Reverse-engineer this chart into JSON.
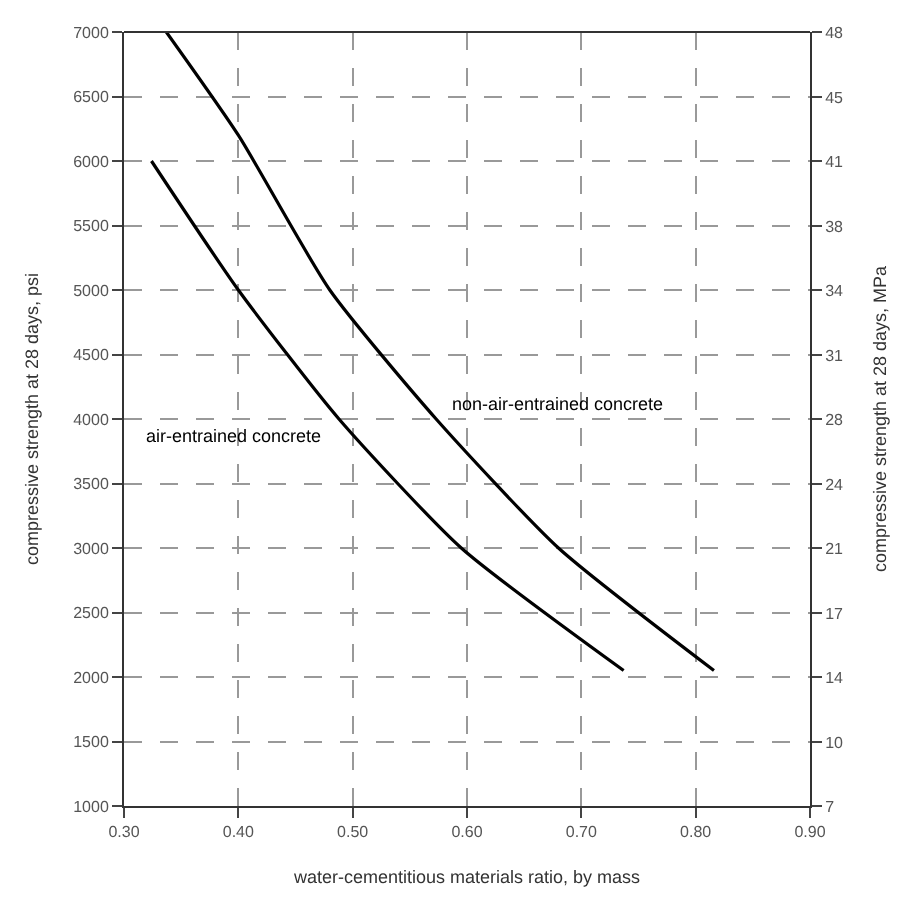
{
  "chart_data": {
    "type": "line",
    "xlabel": "water-cementitious materials ratio, by mass",
    "ylabel": "compressive strength at 28 days, psi",
    "y2label": "compressive strength at 28 days, MPa",
    "series": [
      {
        "name": "non-air-entrained concrete",
        "color": "#000000",
        "x": [
          0.337,
          0.4,
          0.48,
          0.573,
          0.68,
          0.816
        ],
        "values": [
          7000,
          6200,
          5000,
          4000,
          3000,
          2050
        ]
      },
      {
        "name": "air-entrained concrete",
        "color": "#000000",
        "x": [
          0.324,
          0.4,
          0.488,
          0.595,
          0.737
        ],
        "values": [
          6000,
          5000,
          4000,
          3000,
          2050
        ]
      }
    ],
    "xlim": [
      0.3,
      0.9
    ],
    "xticks": [
      {
        "value": 0.3,
        "label": "0.30"
      },
      {
        "value": 0.4,
        "label": "0.40"
      },
      {
        "value": 0.5,
        "label": "0.50"
      },
      {
        "value": 0.6,
        "label": "0.60"
      },
      {
        "value": 0.7,
        "label": "0.70"
      },
      {
        "value": 0.8,
        "label": "0.80"
      },
      {
        "value": 0.9,
        "label": "0.90"
      }
    ],
    "ylim": [
      1000,
      7000
    ],
    "yticks": [
      1000,
      1500,
      2000,
      2500,
      3000,
      3500,
      4000,
      4500,
      5000,
      5500,
      6000,
      6500,
      7000
    ],
    "y2lim": [
      6.9,
      48.3
    ],
    "y2ticks": [
      {
        "value": 6.9,
        "label": "7"
      },
      {
        "value": 10.3,
        "label": "10"
      },
      {
        "value": 13.8,
        "label": "14"
      },
      {
        "value": 17.2,
        "label": "17"
      },
      {
        "value": 20.7,
        "label": "21"
      },
      {
        "value": 24.1,
        "label": "24"
      },
      {
        "value": 27.6,
        "label": "28"
      },
      {
        "value": 31.0,
        "label": "31"
      },
      {
        "value": 34.5,
        "label": "34"
      },
      {
        "value": 37.9,
        "label": "38"
      },
      {
        "value": 41.4,
        "label": "41"
      },
      {
        "value": 44.8,
        "label": "45"
      },
      {
        "value": 48.3,
        "label": "48"
      }
    ],
    "grid": true,
    "line_style": "solid",
    "marker": "none",
    "legend": false
  }
}
